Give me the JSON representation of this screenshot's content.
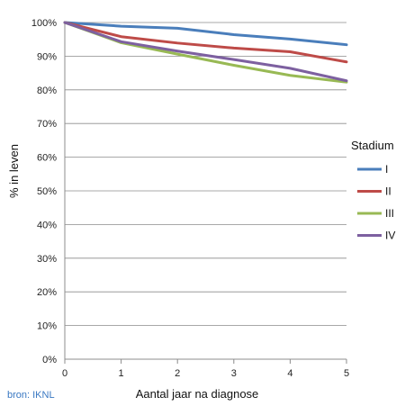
{
  "chart_data": {
    "type": "line",
    "title": "",
    "xlabel": "Aantal jaar na diagnose",
    "ylabel": "% in leven",
    "x": [
      0,
      1,
      2,
      3,
      4,
      5
    ],
    "xlim": [
      0,
      5
    ],
    "ylim": [
      0,
      100
    ],
    "y_ticks": [
      "0%",
      "10%",
      "20%",
      "30%",
      "40%",
      "50%",
      "60%",
      "70%",
      "80%",
      "90%",
      "100%"
    ],
    "x_ticks": [
      "0",
      "1",
      "2",
      "3",
      "4",
      "5"
    ],
    "grid": "horizontal",
    "legend_title": "Stadium",
    "legend_position": "right",
    "series": [
      {
        "name": "I",
        "color": "#4a7ebb",
        "values": [
          100,
          98.9,
          98.3,
          96.4,
          95.1,
          93.4
        ]
      },
      {
        "name": "II",
        "color": "#be4b48",
        "values": [
          100,
          95.8,
          93.9,
          92.4,
          91.3,
          88.3
        ]
      },
      {
        "name": "III",
        "color": "#98b954",
        "values": [
          100,
          94.0,
          90.6,
          87.3,
          84.3,
          82.3
        ]
      },
      {
        "name": "IV",
        "color": "#7d60a0",
        "values": [
          100,
          94.3,
          91.5,
          89.0,
          86.4,
          82.7
        ]
      }
    ]
  },
  "source_note": "bron: IKNL"
}
